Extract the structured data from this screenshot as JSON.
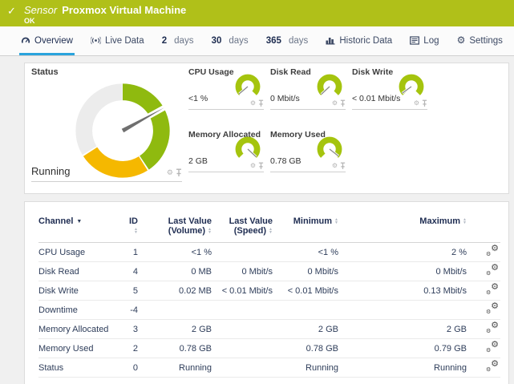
{
  "colors": {
    "header_bg": "#b0c019",
    "gauge_green": "#8fba0f",
    "gauge_yellow": "#f5b800",
    "gauge_gray": "#ececec",
    "small_gauge_green": "#a5c40e",
    "needle": "#6f6f6f",
    "active_tab": "#2aa3dc"
  },
  "header": {
    "kind_label": "Sensor",
    "title": "Proxmox Virtual Machine",
    "status": "OK"
  },
  "tabs": [
    {
      "id": "overview",
      "label": "Overview",
      "icon": "gauge-icon",
      "active": true
    },
    {
      "id": "live-data",
      "label": "Live Data",
      "icon": "live-icon",
      "active": false
    },
    {
      "id": "2-days",
      "prefix": "2",
      "label": "days",
      "active": false
    },
    {
      "id": "30-days",
      "prefix": "30",
      "label": "days",
      "active": false
    },
    {
      "id": "365-days",
      "prefix": "365",
      "label": "days",
      "active": false
    },
    {
      "id": "historic-data",
      "label": "Historic Data",
      "icon": "chart-icon",
      "active": false
    },
    {
      "id": "log",
      "label": "Log",
      "icon": "log-icon",
      "active": false
    },
    {
      "id": "settings",
      "label": "Settings",
      "icon": "gear-icon",
      "active": false
    }
  ],
  "overview": {
    "status_tile": {
      "title": "Status",
      "value": "Running",
      "gauge": {
        "segments": [
          {
            "from": 0,
            "to": 146,
            "color": "gauge_green"
          },
          {
            "from": 148,
            "to": 237,
            "color": "gauge_yellow"
          },
          {
            "from": 239,
            "to": 359.5,
            "color": "gauge_gray"
          }
        ],
        "needle_angle": 61
      }
    },
    "tiles": [
      {
        "title": "CPU Usage",
        "value": "<1 %",
        "needle_angle": -130
      },
      {
        "title": "Disk Read",
        "value": "0 Mbit/s",
        "needle_angle": -133
      },
      {
        "title": "Disk Write",
        "value": "< 0.01 Mbit/s",
        "needle_angle": -126
      },
      {
        "title": "Memory Allocated",
        "value": "2 GB",
        "needle_angle": 133
      },
      {
        "title": "Memory Used",
        "value": "0.78 GB",
        "needle_angle": 128
      }
    ]
  },
  "table": {
    "columns": [
      {
        "key": "channel",
        "label": "Channel",
        "sorted": true
      },
      {
        "key": "id",
        "label": "ID",
        "sort": true
      },
      {
        "key": "volume",
        "label": "Last Value",
        "label2": "(Volume)",
        "sort": true
      },
      {
        "key": "speed",
        "label": "Last Value",
        "label2": "(Speed)",
        "sort": true
      },
      {
        "key": "min",
        "label": "Minimum",
        "sort": true
      },
      {
        "key": "max",
        "label": "Maximum",
        "sort": true
      }
    ],
    "rows": [
      {
        "channel": "CPU Usage",
        "id": "1",
        "volume": "<1 %",
        "speed": "",
        "min": "<1 %",
        "max": "2 %"
      },
      {
        "channel": "Disk Read",
        "id": "4",
        "volume": "0 MB",
        "speed": "0 Mbit/s",
        "min": "0 Mbit/s",
        "max": "0 Mbit/s"
      },
      {
        "channel": "Disk Write",
        "id": "5",
        "volume": "0.02 MB",
        "speed": "< 0.01 Mbit/s",
        "min": "< 0.01 Mbit/s",
        "max": "0.13 Mbit/s"
      },
      {
        "channel": "Downtime",
        "id": "-4",
        "volume": "",
        "speed": "",
        "min": "",
        "max": ""
      },
      {
        "channel": "Memory Allocated",
        "id": "3",
        "volume": "2 GB",
        "speed": "",
        "min": "2 GB",
        "max": "2 GB"
      },
      {
        "channel": "Memory Used",
        "id": "2",
        "volume": "0.78 GB",
        "speed": "",
        "min": "0.78 GB",
        "max": "0.79 GB"
      },
      {
        "channel": "Status",
        "id": "0",
        "volume": "Running",
        "speed": "",
        "min": "Running",
        "max": "Running"
      }
    ]
  }
}
